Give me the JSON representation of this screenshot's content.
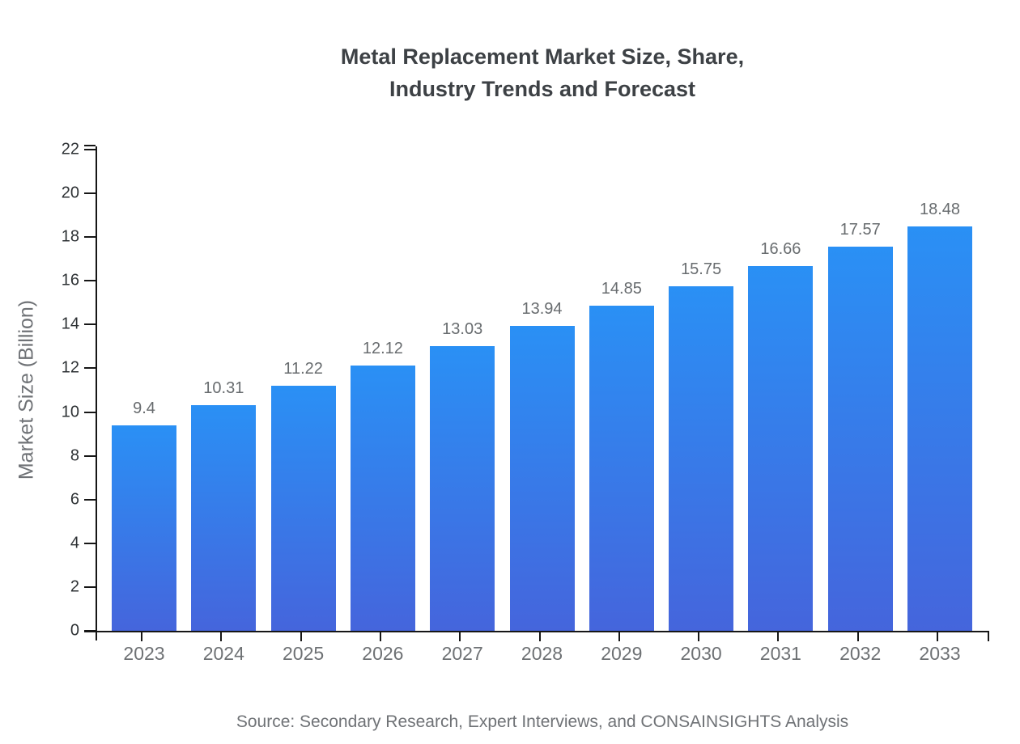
{
  "title": {
    "line1": "Metal Replacement Market Size, Share,",
    "line2": "Industry Trends and Forecast"
  },
  "source_note": "Source: Secondary Research, Expert Interviews, and CONSAINSIGHTS Analysis",
  "chart_data": {
    "type": "bar",
    "title": "Metal Replacement Market Size, Share, Industry Trends and Forecast",
    "categories": [
      "2023",
      "2024",
      "2025",
      "2026",
      "2027",
      "2028",
      "2029",
      "2030",
      "2031",
      "2032",
      "2033"
    ],
    "values": [
      9.4,
      10.31,
      11.22,
      12.12,
      13.03,
      13.94,
      14.85,
      15.75,
      16.66,
      17.57,
      18.48
    ],
    "value_labels": [
      "9.4",
      "10.31",
      "11.22",
      "12.12",
      "13.03",
      "13.94",
      "14.85",
      "15.75",
      "16.66",
      "17.57",
      "18.48"
    ],
    "xlabel": "",
    "ylabel": "Market Size (Billion)",
    "ylim": [
      0,
      22
    ],
    "ytick_step": 2,
    "grid": false,
    "legend_position": "none",
    "colors": {
      "bar_gradient_top": "#2a90f5",
      "bar_gradient_bottom": "#4565dc",
      "axis_line": "#161616",
      "title_text": "#3d4145",
      "tick_text": "#6e7174",
      "value_label_text": "#686c6f"
    }
  }
}
